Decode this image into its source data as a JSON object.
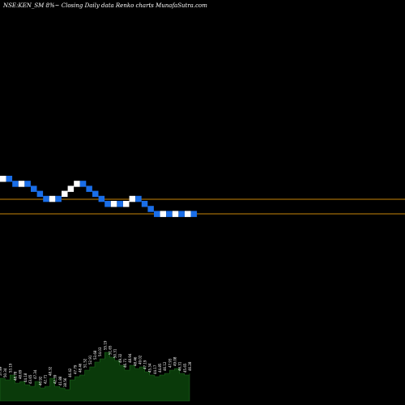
{
  "chart_data": {
    "type": "renko",
    "title": "NSE:KEN_SM 8%~ Closing Daily data Renko charts MunafaSutra.com",
    "reference_lines_price_levels": [
      "upper",
      "lower"
    ],
    "renko_bricks": [
      {
        "dir": "up",
        "level": 10
      },
      {
        "dir": "down",
        "level": 10
      },
      {
        "dir": "down",
        "level": 9
      },
      {
        "dir": "up",
        "level": 9
      },
      {
        "dir": "down",
        "level": 9
      },
      {
        "dir": "down",
        "level": 8
      },
      {
        "dir": "down",
        "level": 7
      },
      {
        "dir": "down",
        "level": 6
      },
      {
        "dir": "up",
        "level": 6
      },
      {
        "dir": "down",
        "level": 6
      },
      {
        "dir": "up",
        "level": 7
      },
      {
        "dir": "up",
        "level": 8
      },
      {
        "dir": "up",
        "level": 9
      },
      {
        "dir": "down",
        "level": 9
      },
      {
        "dir": "down",
        "level": 8
      },
      {
        "dir": "down",
        "level": 7
      },
      {
        "dir": "down",
        "level": 6
      },
      {
        "dir": "down",
        "level": 5
      },
      {
        "dir": "up",
        "level": 5
      },
      {
        "dir": "down",
        "level": 5
      },
      {
        "dir": "up",
        "level": 5
      },
      {
        "dir": "up",
        "level": 6
      },
      {
        "dir": "down",
        "level": 6
      },
      {
        "dir": "down",
        "level": 5
      },
      {
        "dir": "down",
        "level": 4
      },
      {
        "dir": "down",
        "level": 3
      },
      {
        "dir": "up",
        "level": 3
      },
      {
        "dir": "down",
        "level": 3
      },
      {
        "dir": "up",
        "level": 3
      },
      {
        "dir": "down",
        "level": 3
      },
      {
        "dir": "up",
        "level": 3
      },
      {
        "dir": "down",
        "level": 3
      }
    ],
    "volume_labels": [
      "57.89",
      "50.34",
      "53.19",
      "48.78",
      "48.69",
      "44.18",
      "43.65",
      "47.34",
      "40.92",
      "42.71",
      "48.32",
      "42.39",
      "41.88",
      "38.56",
      "46.42",
      "47.79",
      "48.46",
      "51.52",
      "52.91",
      "53.68",
      "54.03",
      "55.19",
      "51.65",
      "50.31",
      "49.32",
      "46.71",
      "48.94",
      "48.46",
      "49.02",
      "47.19",
      "45.34",
      "44.17",
      "44.85",
      "46.12",
      "47.93",
      "49.08",
      "46.31",
      "45.65",
      "46.28"
    ],
    "volume_values": [
      14,
      13,
      16,
      11,
      12,
      10,
      9,
      12,
      8,
      9,
      14,
      9,
      8,
      7,
      13,
      15,
      16,
      19,
      21,
      24,
      26,
      30,
      27,
      25,
      22,
      19,
      22,
      20,
      21,
      18,
      16,
      15,
      16,
      17,
      19,
      20,
      17,
      16,
      17
    ],
    "colors": {
      "background": "#000000",
      "up_brick": "#ffffff",
      "down_brick": "#1a6ee8",
      "reference_line": "#c8860a",
      "volume_fill": "#0a3a0a",
      "volume_stroke": "#1f6b1f",
      "label_text": "#ffffff"
    }
  }
}
